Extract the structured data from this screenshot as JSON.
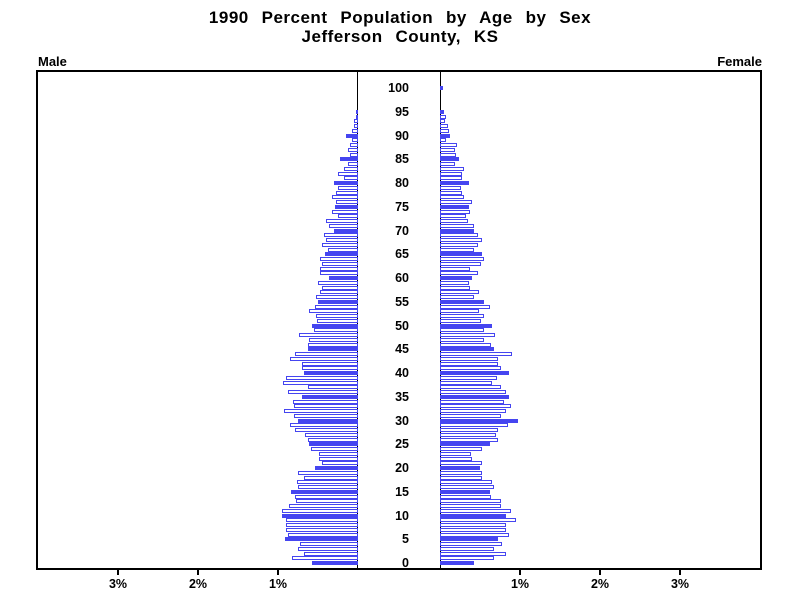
{
  "title": {
    "line1": "1990 Percent Population by Age by Sex",
    "line2": "Jefferson County, KS"
  },
  "panel_labels": {
    "left": "Male",
    "right": "Female"
  },
  "colors": {
    "bar_blue": "#4545F0",
    "axis_black": "#000000",
    "background": "#FFFFFF"
  },
  "axis": {
    "age_min": 0,
    "age_max": 100,
    "age_tick_step": 5,
    "pct_tick_values": [
      1,
      2,
      3
    ],
    "pct_tick_labels": [
      "1%",
      "2%",
      "3%"
    ],
    "pct_axis_max": 4
  },
  "chart_data": {
    "type": "bar",
    "subtype": "population-pyramid",
    "title": "1990 Percent Population by Age by Sex",
    "subtitle": "Jefferson County, KS",
    "xlabel": "Percent of population (left: Male, right: Female)",
    "ylabel": "Age (single years, 0-100)",
    "x_tick_labels_left": [
      "3%",
      "2%",
      "1%"
    ],
    "x_tick_labels_right": [
      "1%",
      "2%",
      "3%"
    ],
    "xlim_each_side_pct": [
      0,
      4
    ],
    "age_labels_every": 5,
    "bar_style_note": "ages that are multiples of 5 are solid blue; other ages are white with blue outline",
    "ages": [
      0,
      1,
      2,
      3,
      4,
      5,
      6,
      7,
      8,
      9,
      10,
      11,
      12,
      13,
      14,
      15,
      16,
      17,
      18,
      19,
      20,
      21,
      22,
      23,
      24,
      25,
      26,
      27,
      28,
      29,
      30,
      31,
      32,
      33,
      34,
      35,
      36,
      37,
      38,
      39,
      40,
      41,
      42,
      43,
      44,
      45,
      46,
      47,
      48,
      49,
      50,
      51,
      52,
      53,
      54,
      55,
      56,
      57,
      58,
      59,
      60,
      61,
      62,
      63,
      64,
      65,
      66,
      67,
      68,
      69,
      70,
      71,
      72,
      73,
      74,
      75,
      76,
      77,
      78,
      79,
      80,
      81,
      82,
      83,
      84,
      85,
      86,
      87,
      88,
      89,
      90,
      91,
      92,
      93,
      94,
      95,
      96,
      97,
      98,
      99,
      100
    ],
    "series": [
      {
        "name": "Male",
        "direction": "left",
        "values_pct": [
          0.58,
          0.82,
          0.68,
          0.75,
          0.73,
          0.91,
          0.88,
          0.9,
          0.9,
          0.9,
          0.95,
          0.95,
          0.86,
          0.77,
          0.79,
          0.84,
          0.75,
          0.76,
          0.68,
          0.75,
          0.54,
          0.45,
          0.49,
          0.49,
          0.59,
          0.61,
          0.63,
          0.66,
          0.79,
          0.85,
          0.75,
          0.8,
          0.92,
          0.8,
          0.81,
          0.7,
          0.87,
          0.63,
          0.94,
          0.9,
          0.68,
          0.7,
          0.7,
          0.85,
          0.79,
          0.62,
          0.63,
          0.61,
          0.74,
          0.55,
          0.58,
          0.51,
          0.53,
          0.61,
          0.54,
          0.5,
          0.52,
          0.48,
          0.45,
          0.5,
          0.36,
          0.48,
          0.47,
          0.45,
          0.48,
          0.41,
          0.38,
          0.45,
          0.4,
          0.43,
          0.3,
          0.36,
          0.4,
          0.25,
          0.33,
          0.29,
          0.28,
          0.33,
          0.28,
          0.25,
          0.3,
          0.18,
          0.25,
          0.18,
          0.12,
          0.23,
          0.1,
          0.12,
          0.1,
          0.08,
          0.15,
          0.08,
          0.05,
          0.05,
          0.02,
          0.03,
          0,
          0,
          0,
          0,
          0
        ]
      },
      {
        "name": "Female",
        "direction": "right",
        "values_pct": [
          0.42,
          0.68,
          0.82,
          0.68,
          0.78,
          0.72,
          0.86,
          0.83,
          0.83,
          0.95,
          0.83,
          0.89,
          0.76,
          0.76,
          0.64,
          0.62,
          0.68,
          0.65,
          0.52,
          0.52,
          0.5,
          0.53,
          0.4,
          0.39,
          0.53,
          0.62,
          0.72,
          0.7,
          0.73,
          0.85,
          0.98,
          0.76,
          0.82,
          0.89,
          0.8,
          0.86,
          0.82,
          0.76,
          0.65,
          0.71,
          0.86,
          0.76,
          0.72,
          0.72,
          0.9,
          0.68,
          0.64,
          0.55,
          0.69,
          0.55,
          0.65,
          0.51,
          0.55,
          0.49,
          0.62,
          0.55,
          0.43,
          0.49,
          0.38,
          0.36,
          0.4,
          0.48,
          0.38,
          0.51,
          0.55,
          0.53,
          0.42,
          0.47,
          0.52,
          0.47,
          0.42,
          0.42,
          0.35,
          0.32,
          0.38,
          0.36,
          0.4,
          0.3,
          0.28,
          0.26,
          0.36,
          0.28,
          0.28,
          0.3,
          0.19,
          0.24,
          0.2,
          0.19,
          0.21,
          0.08,
          0.12,
          0.11,
          0.1,
          0.06,
          0.08,
          0.05,
          0,
          0,
          0,
          0,
          0.04
        ]
      }
    ]
  }
}
